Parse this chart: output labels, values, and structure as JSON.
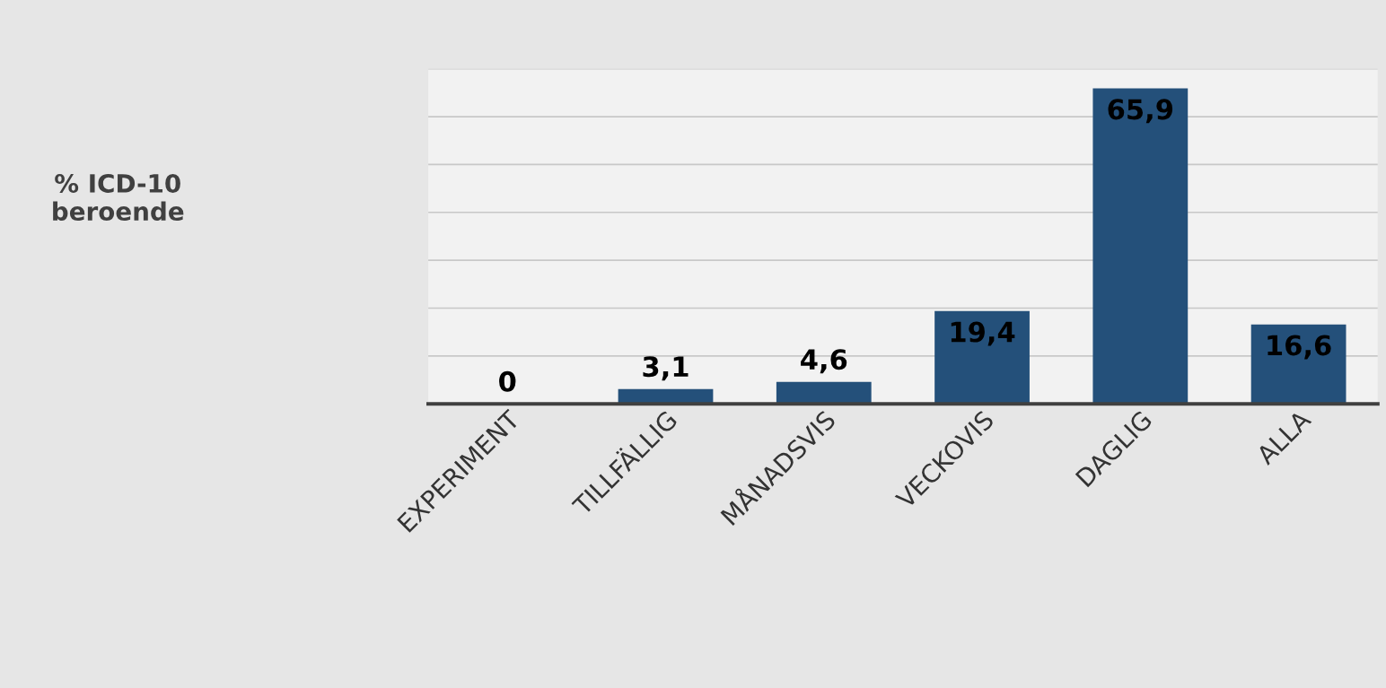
{
  "chart_data": {
    "type": "bar",
    "annotations": [
      "% ICD-10\nberoende"
    ],
    "categories": [
      "EXPERIMENT",
      "TILLFÄLLIG",
      "MÅNADSVIS",
      "VECKOVIS",
      "DAGLIG",
      "ALLA"
    ],
    "values": [
      0,
      3.1,
      4.6,
      19.4,
      65.9,
      16.6
    ],
    "value_labels": [
      "0",
      "3,1",
      "4,6",
      "19,4",
      "65,9",
      "16,6"
    ],
    "color": "#24507a",
    "ylim": [
      0,
      70
    ],
    "yticks": [
      {
        "value": 0,
        "label": null
      },
      {
        "value": 10,
        "label": null
      },
      {
        "value": 20,
        "label": null
      },
      {
        "value": 30,
        "label": null
      },
      {
        "value": 40,
        "label": null
      },
      {
        "value": 50,
        "label": null
      },
      {
        "value": 60,
        "label": null
      },
      {
        "value": 70,
        "label": null
      }
    ],
    "grid": "y",
    "tick_labels": "x",
    "legend": false
  }
}
